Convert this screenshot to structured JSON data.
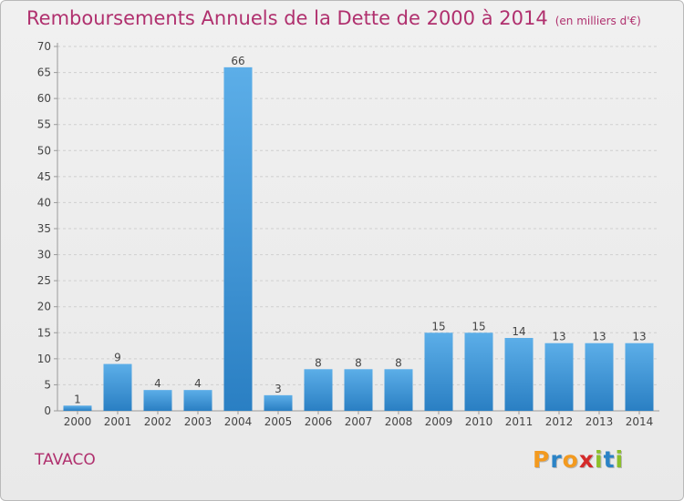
{
  "title": "Remboursements Annuels de la Dette de 2000 à 2014",
  "unit_note": "(en milliers d'€)",
  "commune": "TAVACO",
  "logo": {
    "letters": [
      "P",
      "r",
      "o",
      "x",
      "i",
      "t",
      "i"
    ],
    "colors": [
      "#f39a1f",
      "#2b83c6",
      "#f39a1f",
      "#d42a2a",
      "#8cbf2a",
      "#2b83c6",
      "#8cbf2a"
    ]
  },
  "colors": {
    "bar_light": "#5caee8",
    "bar_dark": "#2a7fc3",
    "title": "#b0306e",
    "grid": "#cfcfcf"
  },
  "chart_data": {
    "type": "bar",
    "categories": [
      "2000",
      "2001",
      "2002",
      "2003",
      "2004",
      "2005",
      "2006",
      "2007",
      "2008",
      "2009",
      "2010",
      "2011",
      "2012",
      "2013",
      "2014"
    ],
    "values": [
      1,
      9,
      4,
      4,
      66,
      3,
      8,
      8,
      8,
      15,
      15,
      14,
      13,
      13,
      13
    ],
    "ylim": [
      0,
      70
    ],
    "yticks": [
      0,
      5,
      10,
      15,
      20,
      25,
      30,
      35,
      40,
      45,
      50,
      55,
      60,
      65,
      70
    ],
    "grid": "horizontal dashed",
    "xlabel": "",
    "ylabel": ""
  }
}
